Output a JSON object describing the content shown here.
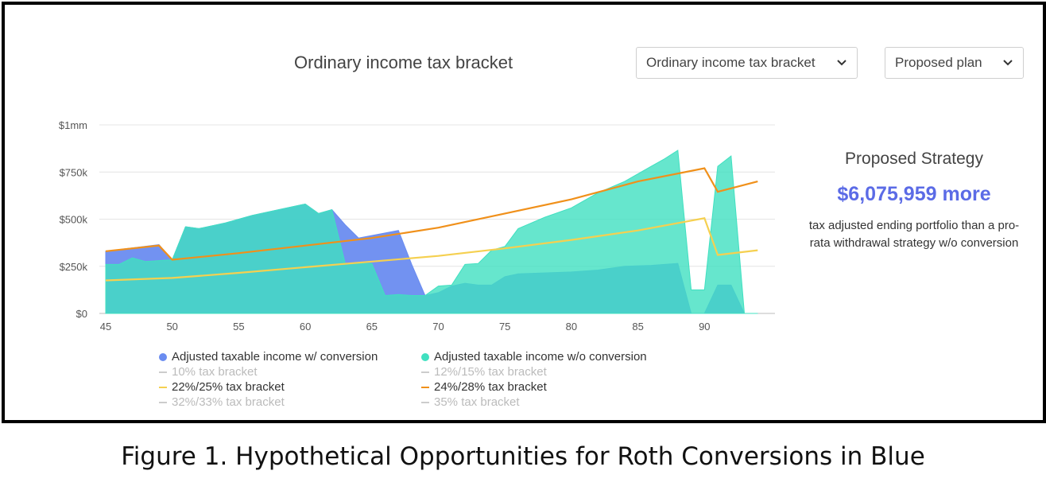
{
  "header": {
    "chart_title": "Ordinary income tax bracket",
    "metric_select": {
      "value": "Ordinary income tax bracket"
    },
    "plan_select": {
      "value": "Proposed plan"
    }
  },
  "strategy": {
    "heading": "Proposed Strategy",
    "amount": "$6,075,959",
    "amount_suffix": "more",
    "description": "tax adjusted ending portfolio than a pro-rata withdrawal strategy w/o conversion"
  },
  "caption": "Figure 1. Hypothetical Opportunities for Roth Conversions in Blue",
  "colors": {
    "with_conversion": "#6a8cf0",
    "without_conversion": "#40e0c0",
    "bracket_22": "#f5d050",
    "bracket_24": "#f0901a",
    "muted": "#cccccc",
    "amount": "#5b6be6"
  },
  "chart_data": {
    "type": "area",
    "x_ticks": [
      45,
      50,
      55,
      60,
      65,
      70,
      75,
      80,
      85,
      90
    ],
    "y_ticks": [
      0,
      250000,
      500000,
      750000,
      1000000
    ],
    "y_tick_labels": [
      "$0",
      "$250k",
      "$500k",
      "$750k",
      "$1mm"
    ],
    "xlim": [
      45,
      95
    ],
    "ylim": [
      0,
      1000000
    ],
    "grid": true,
    "legend_position": "bottom",
    "series": [
      {
        "name": "Adjusted taxable income w/ conversion",
        "kind": "area",
        "color": "#6a8cf0",
        "x": [
          45,
          49,
          50,
          51,
          52,
          54,
          56,
          58,
          60,
          61,
          62,
          63,
          64,
          67,
          68,
          69,
          70,
          71,
          72,
          73,
          74,
          75,
          76,
          80,
          82,
          84,
          86,
          87,
          88,
          89,
          90,
          91,
          92,
          93,
          94
        ],
        "y": [
          330000,
          365000,
          285000,
          460000,
          450000,
          480000,
          520000,
          550000,
          580000,
          530000,
          550000,
          470000,
          400000,
          440000,
          260000,
          95000,
          110000,
          145000,
          160000,
          150000,
          150000,
          195000,
          210000,
          220000,
          230000,
          250000,
          255000,
          260000,
          265000,
          0,
          0,
          150000,
          150000,
          0,
          0
        ]
      },
      {
        "name": "Adjusted taxable income w/o conversion",
        "kind": "area",
        "color": "#40e0c0",
        "x": [
          45,
          46,
          47,
          48,
          49,
          50,
          51,
          52,
          54,
          56,
          58,
          60,
          61,
          62,
          63,
          65,
          66,
          67,
          68,
          69,
          70,
          71,
          72,
          73,
          74,
          75,
          76,
          78,
          80,
          82,
          84,
          86,
          87,
          88,
          89,
          90,
          91,
          92,
          93,
          94
        ],
        "y": [
          260000,
          260000,
          295000,
          275000,
          280000,
          285000,
          460000,
          450000,
          480000,
          520000,
          550000,
          580000,
          530000,
          550000,
          265000,
          265000,
          95000,
          100000,
          95000,
          95000,
          145000,
          150000,
          260000,
          265000,
          335000,
          355000,
          450000,
          510000,
          560000,
          640000,
          700000,
          780000,
          820000,
          865000,
          125000,
          125000,
          780000,
          835000,
          0,
          0
        ]
      },
      {
        "name": "22%/25% tax bracket",
        "kind": "line",
        "color": "#f5d050",
        "x": [
          45,
          50,
          55,
          60,
          65,
          70,
          75,
          80,
          85,
          90,
          91,
          94
        ],
        "y": [
          175000,
          188000,
          215000,
          245000,
          275000,
          305000,
          345000,
          390000,
          440000,
          505000,
          310000,
          335000
        ]
      },
      {
        "name": "24%/28% tax bracket",
        "kind": "line",
        "color": "#f0901a",
        "x": [
          45,
          49,
          50,
          55,
          60,
          65,
          70,
          75,
          80,
          85,
          90,
          91,
          94
        ],
        "y": [
          330000,
          360000,
          285000,
          320000,
          360000,
          400000,
          455000,
          530000,
          605000,
          700000,
          770000,
          645000,
          700000
        ]
      }
    ],
    "legend_entries": [
      {
        "label": "Adjusted taxable income w/ conversion",
        "marker": "dot",
        "color": "#6a8cf0",
        "active": true
      },
      {
        "label": "Adjusted taxable income w/o conversion",
        "marker": "dot",
        "color": "#40e0c0",
        "active": true
      },
      {
        "label": "10% tax bracket",
        "marker": "dash",
        "color": "#cccccc",
        "active": false
      },
      {
        "label": "12%/15% tax bracket",
        "marker": "dash",
        "color": "#cccccc",
        "active": false
      },
      {
        "label": "22%/25% tax bracket",
        "marker": "dash",
        "color": "#f5d050",
        "active": true
      },
      {
        "label": "24%/28% tax bracket",
        "marker": "dash",
        "color": "#f0901a",
        "active": true
      },
      {
        "label": "32%/33% tax bracket",
        "marker": "dash",
        "color": "#cccccc",
        "active": false
      },
      {
        "label": "35% tax bracket",
        "marker": "dash",
        "color": "#cccccc",
        "active": false
      }
    ]
  }
}
